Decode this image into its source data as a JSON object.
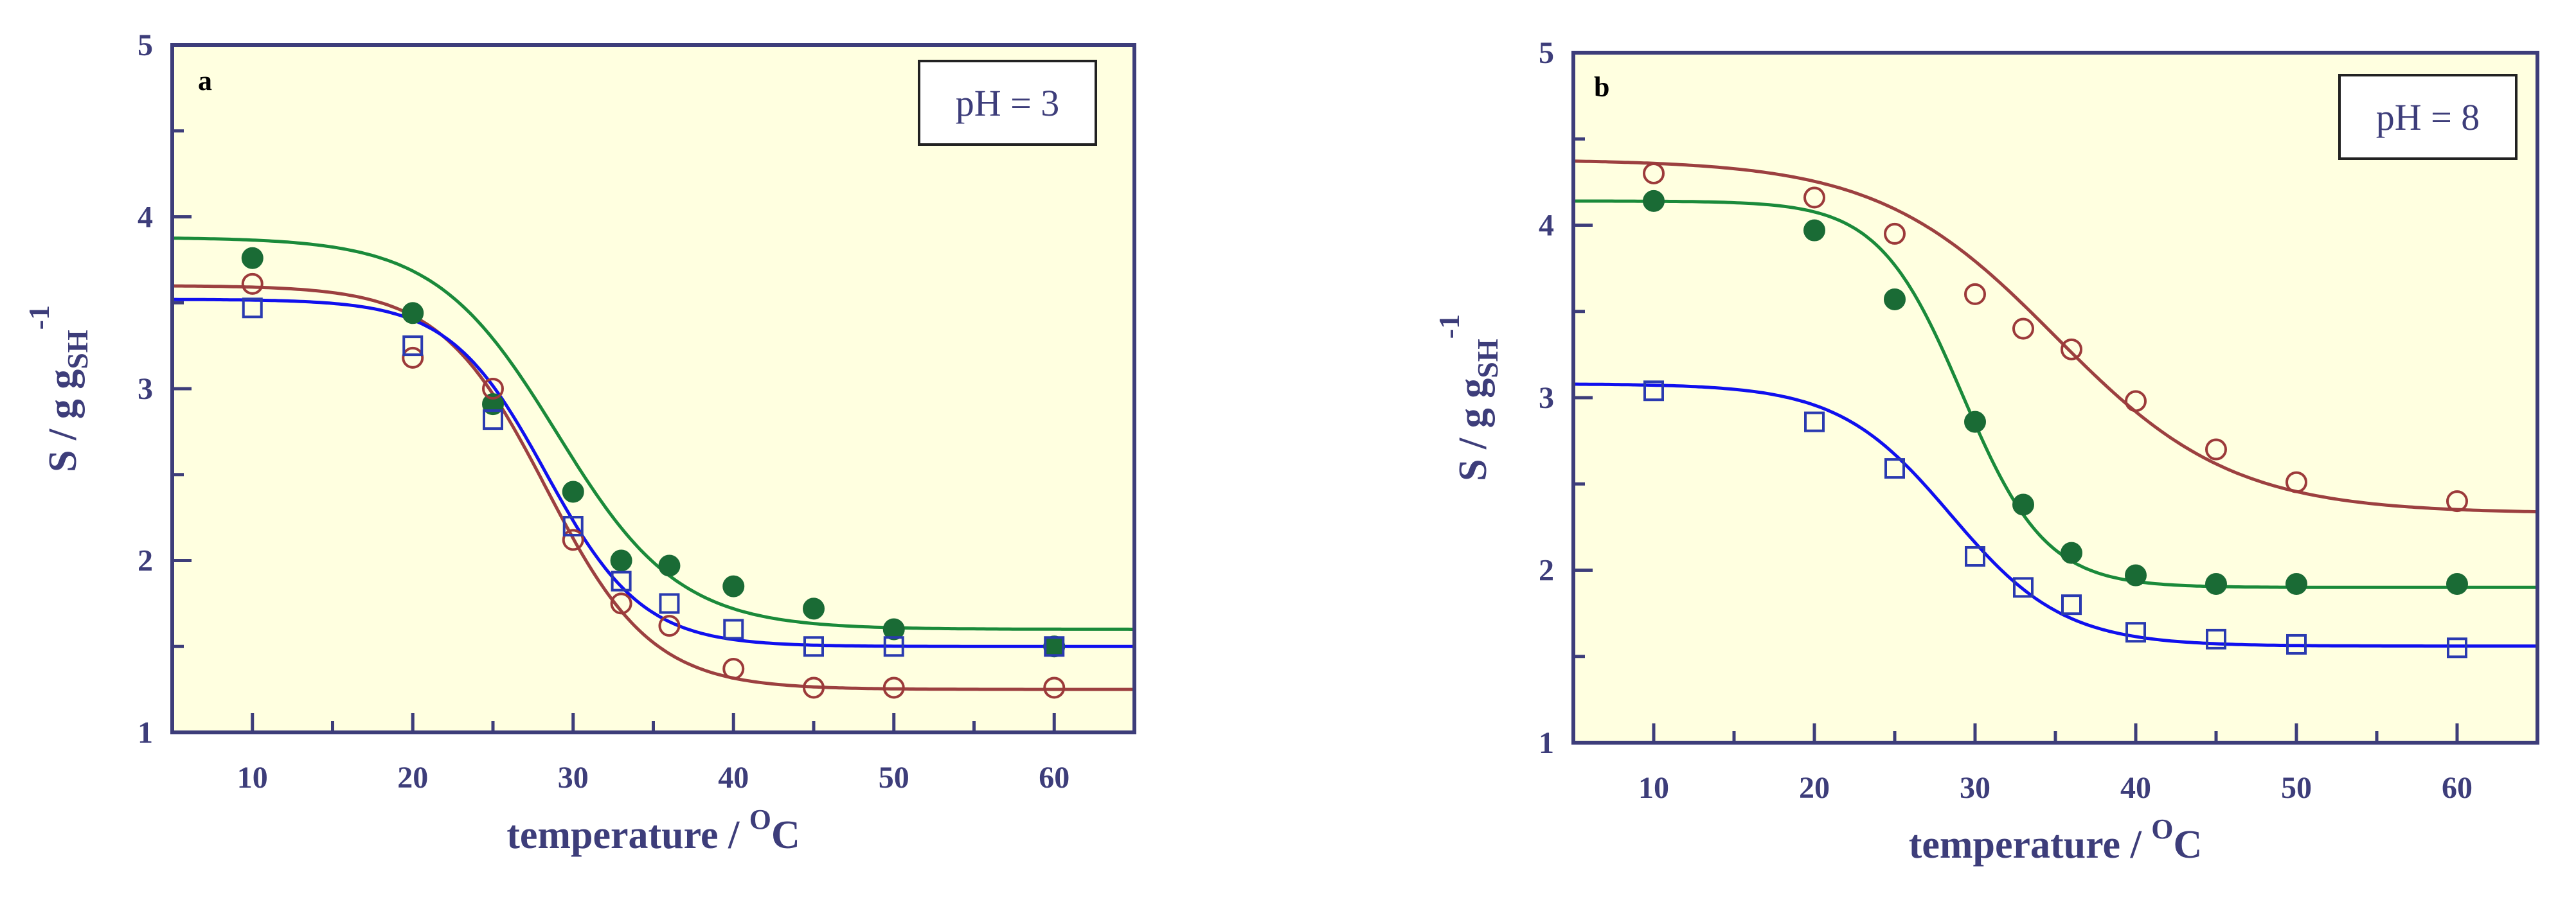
{
  "chart_data": [
    {
      "type": "line",
      "panel_label": "a",
      "annotation": "pH = 3",
      "xlabel_main": "temperature / ",
      "xlabel_sup": "O",
      "xlabel_tail": "C",
      "ylabel_main": "S / g g",
      "ylabel_sub": "SH",
      "ylabel_sup": "-1",
      "xlim": [
        5,
        65
      ],
      "ylim": [
        1,
        5
      ],
      "xticks": [
        10,
        20,
        30,
        40,
        50,
        60
      ],
      "yticks": [
        1,
        2,
        3,
        4,
        5
      ],
      "grid": false,
      "background": "#ffffe0",
      "series": [
        {
          "marker": "filled-circle",
          "color": "#1a6b35",
          "line_color": "#1a8a3a",
          "points": [
            [
              10,
              3.76
            ],
            [
              20,
              3.44
            ],
            [
              25,
              2.91
            ],
            [
              30,
              2.4
            ],
            [
              33,
              2.0
            ],
            [
              36,
              1.97
            ],
            [
              40,
              1.85
            ],
            [
              45,
              1.72
            ],
            [
              50,
              1.6
            ],
            [
              60,
              1.5
            ]
          ],
          "fit": {
            "high": 3.88,
            "low": 1.6,
            "mid": 29.0,
            "width": 3.8
          }
        },
        {
          "marker": "open-circle",
          "color": "#9c3a3a",
          "line_color": "#9c4040",
          "points": [
            [
              10,
              3.61
            ],
            [
              20,
              3.18
            ],
            [
              25,
              3.0
            ],
            [
              30,
              2.12
            ],
            [
              33,
              1.75
            ],
            [
              36,
              1.62
            ],
            [
              40,
              1.37
            ],
            [
              45,
              1.26
            ],
            [
              50,
              1.26
            ],
            [
              60,
              1.26
            ]
          ],
          "fit": {
            "high": 3.6,
            "low": 1.25,
            "mid": 28.3,
            "width": 3.3
          }
        },
        {
          "marker": "open-square",
          "color": "#2a3ab0",
          "line_color": "#1010ee",
          "points": [
            [
              10,
              3.47
            ],
            [
              20,
              3.25
            ],
            [
              25,
              2.82
            ],
            [
              30,
              2.2
            ],
            [
              33,
              1.88
            ],
            [
              36,
              1.75
            ],
            [
              40,
              1.6
            ],
            [
              45,
              1.5
            ],
            [
              50,
              1.5
            ],
            [
              60,
              1.5
            ]
          ],
          "fit": {
            "high": 3.52,
            "low": 1.5,
            "mid": 28.3,
            "width": 3.0
          }
        }
      ]
    },
    {
      "type": "line",
      "panel_label": "b",
      "annotation": "pH = 8",
      "xlabel_main": "temperature / ",
      "xlabel_sup": "O",
      "xlabel_tail": "C",
      "ylabel_main": "S / g g",
      "ylabel_sub": "SH",
      "ylabel_sup": "-1",
      "xlim": [
        5,
        65
      ],
      "ylim": [
        1,
        5
      ],
      "xticks": [
        10,
        20,
        30,
        40,
        50,
        60
      ],
      "yticks": [
        1,
        2,
        3,
        4,
        5
      ],
      "grid": false,
      "background": "#ffffe0",
      "series": [
        {
          "marker": "open-circle",
          "color": "#9c3a3a",
          "line_color": "#9c4040",
          "points": [
            [
              10,
              4.3
            ],
            [
              20,
              4.16
            ],
            [
              25,
              3.95
            ],
            [
              30,
              3.6
            ],
            [
              33,
              3.4
            ],
            [
              36,
              3.28
            ],
            [
              40,
              2.98
            ],
            [
              45,
              2.7
            ],
            [
              50,
              2.51
            ],
            [
              60,
              2.4
            ]
          ],
          "fit": {
            "high": 4.38,
            "low": 2.33,
            "mid": 35.0,
            "width": 5.5
          }
        },
        {
          "marker": "filled-circle",
          "color": "#1a6b35",
          "line_color": "#1a8a3a",
          "points": [
            [
              10,
              4.14
            ],
            [
              20,
              3.97
            ],
            [
              25,
              3.57
            ],
            [
              30,
              2.86
            ],
            [
              33,
              2.38
            ],
            [
              36,
              2.1
            ],
            [
              40,
              1.97
            ],
            [
              45,
              1.92
            ],
            [
              50,
              1.92
            ],
            [
              60,
              1.92
            ]
          ],
          "fit": {
            "high": 4.14,
            "low": 1.9,
            "mid": 29.2,
            "width": 2.6
          }
        },
        {
          "marker": "open-square",
          "color": "#2a3ab0",
          "line_color": "#1010ee",
          "points": [
            [
              10,
              3.04
            ],
            [
              20,
              2.86
            ],
            [
              25,
              2.59
            ],
            [
              30,
              2.08
            ],
            [
              33,
              1.9
            ],
            [
              36,
              1.8
            ],
            [
              40,
              1.64
            ],
            [
              45,
              1.6
            ],
            [
              50,
              1.57
            ],
            [
              60,
              1.55
            ]
          ],
          "fit": {
            "high": 3.08,
            "low": 1.56,
            "mid": 28.5,
            "width": 3.5
          }
        }
      ]
    }
  ]
}
